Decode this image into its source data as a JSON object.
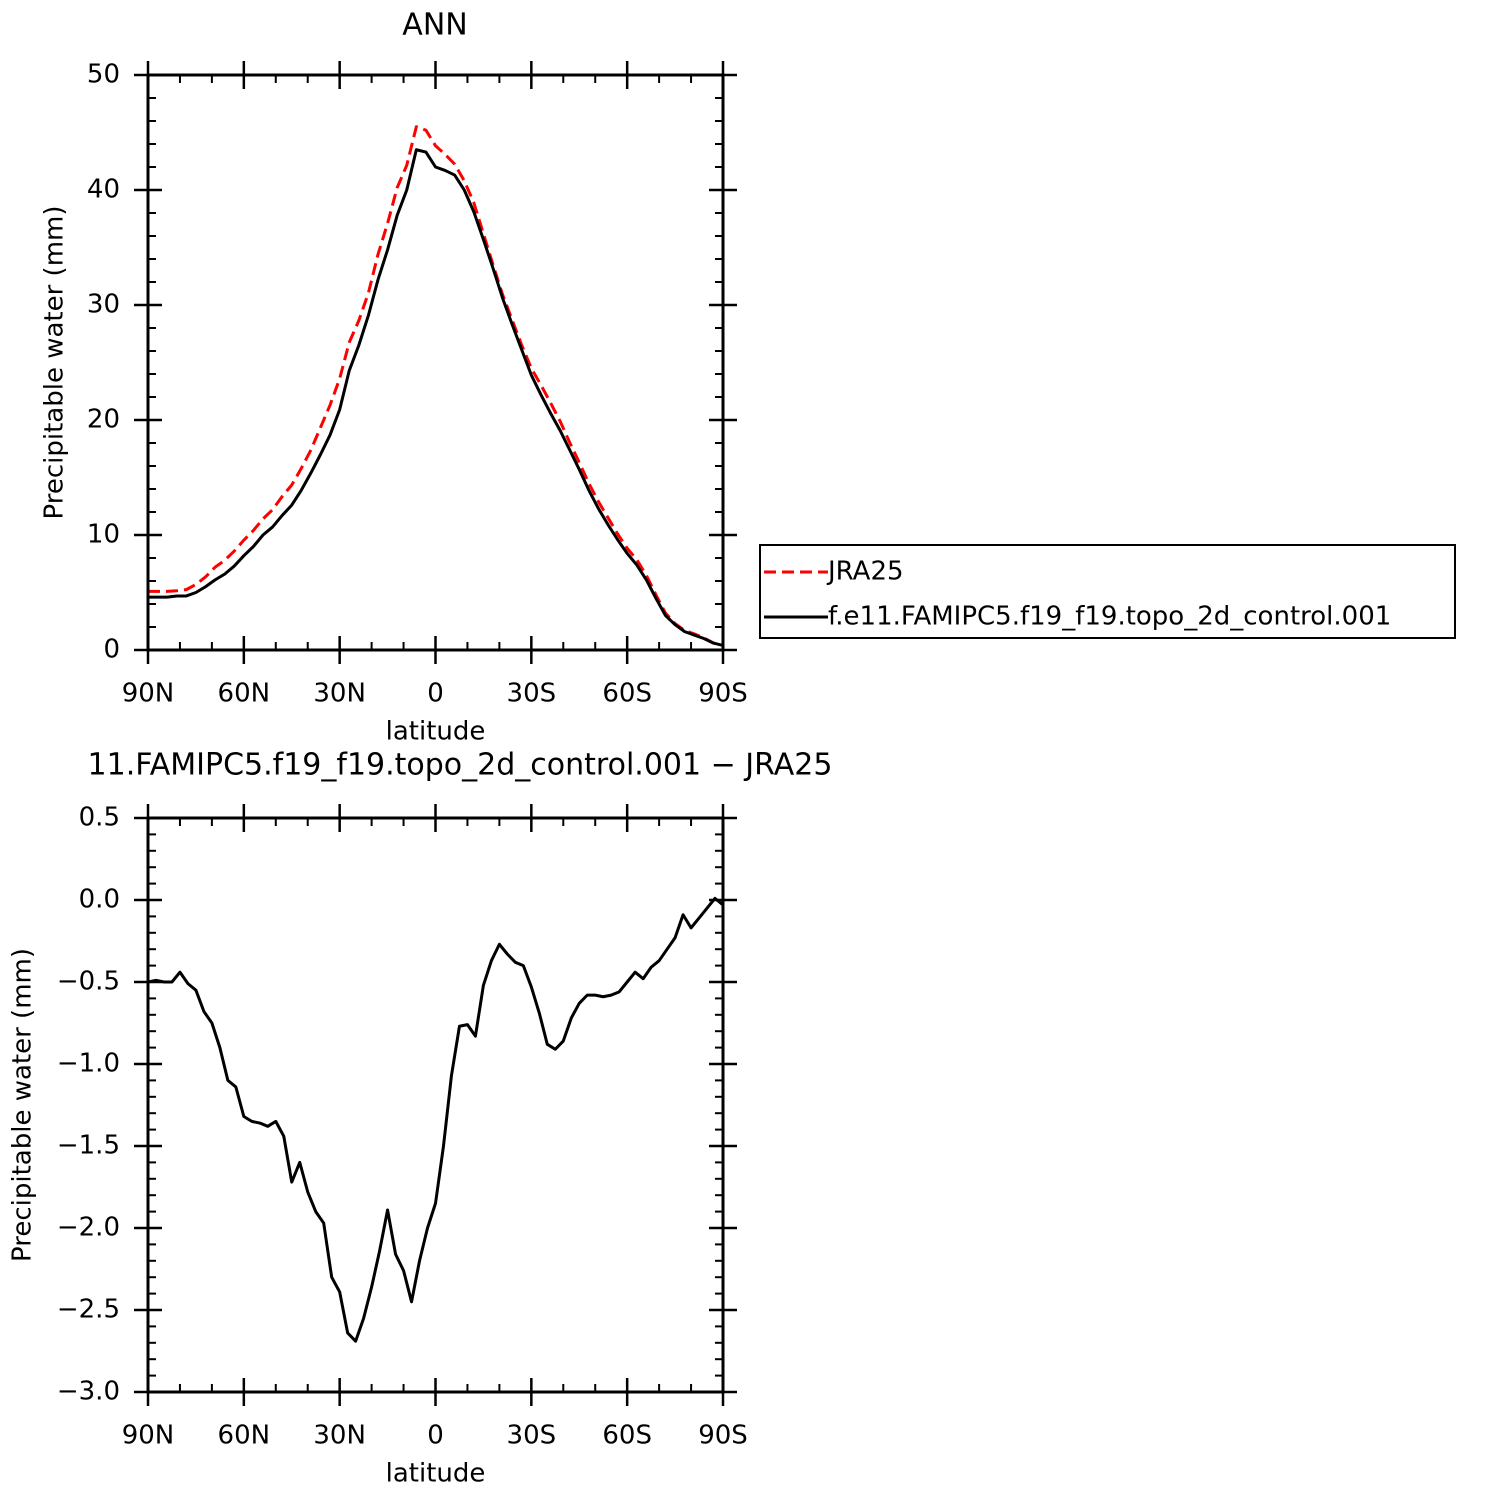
{
  "chart_data": [
    {
      "type": "line",
      "title": "ANN",
      "x_label": "latitude",
      "y_label": "Precipitable water (mm)",
      "x": [
        90,
        87,
        84,
        81,
        78,
        75,
        72,
        69,
        66,
        63,
        60,
        57,
        54,
        51,
        48,
        45,
        42,
        39,
        36,
        33,
        30,
        27,
        24,
        21,
        18,
        15,
        12,
        9,
        6,
        3,
        0,
        -3,
        -6,
        -9,
        -12,
        -15,
        -18,
        -21,
        -24,
        -27,
        -30,
        -33,
        -36,
        -39,
        -42,
        -45,
        -48,
        -51,
        -54,
        -57,
        -60,
        -63,
        -66,
        -69,
        -72,
        -75,
        -78,
        -81,
        -84,
        -87,
        -90
      ],
      "xlim": [
        90,
        -90
      ],
      "xticks": [
        {
          "value": 90,
          "label": "90N"
        },
        {
          "value": 60,
          "label": "60N"
        },
        {
          "value": 30,
          "label": "30N"
        },
        0,
        {
          "value": -30,
          "label": "30S"
        },
        {
          "value": -60,
          "label": "60S"
        },
        {
          "value": -90,
          "label": "90S"
        }
      ],
      "ylim": [
        0,
        50
      ],
      "yticks": [
        0,
        10,
        20,
        30,
        40,
        50
      ],
      "legend": "right",
      "series": [
        {
          "name": "JRA25",
          "color": "#ff0000",
          "dash": "dashed",
          "values": [
            5.1,
            5.1,
            5.1,
            5.15,
            5.25,
            5.7,
            6.35,
            7.2,
            7.8,
            8.6,
            9.55,
            10.4,
            11.4,
            12.2,
            13.35,
            14.35,
            15.8,
            17.4,
            19.35,
            21.3,
            23.6,
            26.75,
            28.65,
            31.05,
            34.4,
            37.1,
            40.2,
            42.15,
            45.5,
            45.2,
            43.85,
            43.1,
            42.25,
            40.8,
            38.9,
            36.2,
            33.5,
            30.9,
            28.7,
            26.5,
            24.5,
            23.05,
            21.5,
            19.9,
            18.05,
            16.3,
            14.5,
            12.9,
            11.5,
            10.1,
            8.85,
            7.85,
            6.5,
            4.8,
            3.2,
            2.3,
            1.7,
            1.4,
            1.05,
            0.6,
            0.4
          ]
        },
        {
          "name": "f.e11.FAMIPC5.f19_f19.topo_2d_control.001",
          "color": "#000000",
          "dash": "solid",
          "values": [
            4.6,
            4.6,
            4.6,
            4.7,
            4.7,
            5.0,
            5.5,
            6.1,
            6.6,
            7.3,
            8.2,
            9.0,
            10.0,
            10.7,
            11.7,
            12.6,
            13.9,
            15.4,
            17.0,
            18.7,
            20.9,
            24.3,
            26.5,
            29.1,
            32.2,
            34.8,
            37.8,
            40.0,
            43.5,
            43.3,
            42.0,
            41.7,
            41.3,
            40.0,
            38.1,
            35.7,
            33.2,
            30.6,
            28.3,
            26.1,
            23.9,
            22.2,
            20.6,
            19.1,
            17.4,
            15.7,
            13.9,
            12.3,
            10.9,
            9.6,
            8.4,
            7.4,
            6.1,
            4.5,
            3.0,
            2.2,
            1.6,
            1.3,
            1.0,
            0.6,
            0.4
          ]
        }
      ]
    },
    {
      "type": "line",
      "title": "11.FAMIPC5.f19_f19.topo_2d_control.001 − JRA25",
      "x_label": "latitude",
      "y_label": "Precipitable water (mm)",
      "x": [
        90,
        87.5,
        85,
        82.5,
        80,
        77.5,
        75,
        72.5,
        70,
        67.5,
        65,
        62.5,
        60,
        57.5,
        55,
        52.5,
        50,
        47.5,
        45,
        42.5,
        40,
        37.5,
        35,
        32.5,
        30,
        27.5,
        25,
        22.5,
        20,
        17.5,
        15,
        12.5,
        10,
        7.5,
        5,
        2.5,
        0,
        -2.5,
        -5,
        -7.5,
        -10,
        -12.5,
        -15,
        -17.5,
        -20,
        -22.5,
        -25,
        -27.5,
        -30,
        -32.5,
        -35,
        -37.5,
        -40,
        -42.5,
        -45,
        -47.5,
        -50,
        -52.5,
        -55,
        -57.5,
        -60,
        -62.5,
        -65,
        -67.5,
        -70,
        -72.5,
        -75,
        -77.5,
        -80,
        -82.5,
        -85,
        -87.5,
        -90
      ],
      "xlim": [
        90,
        -90
      ],
      "xticks": [
        {
          "value": 90,
          "label": "90N"
        },
        {
          "value": 60,
          "label": "60N"
        },
        {
          "value": 30,
          "label": "30N"
        },
        0,
        {
          "value": -30,
          "label": "30S"
        },
        {
          "value": -60,
          "label": "60S"
        },
        {
          "value": -90,
          "label": "90S"
        }
      ],
      "ylim": [
        -3.0,
        0.5
      ],
      "yticks": [
        {
          "value": -3.0,
          "label": "−3.0"
        },
        {
          "value": -2.5,
          "label": "−2.5"
        },
        {
          "value": -2.0,
          "label": "−2.0"
        },
        {
          "value": -1.5,
          "label": "−1.5"
        },
        {
          "value": -1.0,
          "label": "−1.0"
        },
        {
          "value": -0.5,
          "label": "−0.5"
        },
        {
          "value": 0,
          "label": "0.0"
        },
        0.5
      ],
      "color": "#000000",
      "values": [
        -0.5,
        -0.49,
        -0.5,
        -0.5,
        -0.44,
        -0.51,
        -0.55,
        -0.68,
        -0.75,
        -0.9,
        -1.1,
        -1.14,
        -1.32,
        -1.35,
        -1.36,
        -1.38,
        -1.35,
        -1.44,
        -1.72,
        -1.6,
        -1.78,
        -1.9,
        -1.97,
        -2.3,
        -2.39,
        -2.64,
        -2.69,
        -2.55,
        -2.36,
        -2.14,
        -1.89,
        -2.16,
        -2.26,
        -2.45,
        -2.2,
        -2.0,
        -1.85,
        -1.5,
        -1.07,
        -0.77,
        -0.76,
        -0.83,
        -0.52,
        -0.37,
        -0.27,
        -0.33,
        -0.38,
        -0.4,
        -0.53,
        -0.69,
        -0.88,
        -0.91,
        -0.86,
        -0.72,
        -0.63,
        -0.58,
        -0.58,
        -0.59,
        -0.58,
        -0.56,
        -0.5,
        -0.44,
        -0.48,
        -0.41,
        -0.37,
        -0.3,
        -0.23,
        -0.09,
        -0.17,
        -0.11,
        -0.05,
        0.01,
        -0.03
      ]
    }
  ]
}
